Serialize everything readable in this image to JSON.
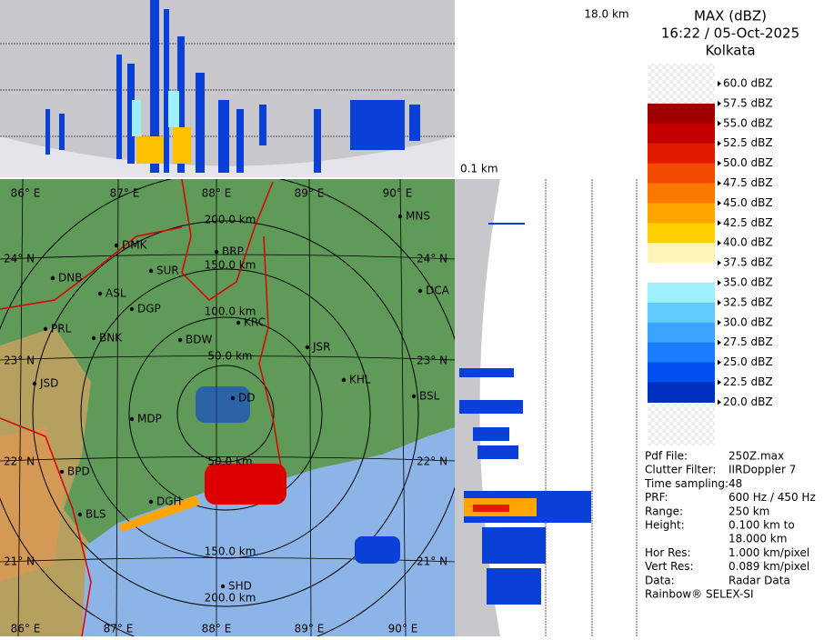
{
  "header": {
    "title": "MAX (dBZ)",
    "time": "16:22 / 05-Oct-2025",
    "site": "Kolkata"
  },
  "panels": {
    "top_height": "18.0 km",
    "side_height": "0.1 km"
  },
  "legend": [
    {
      "label": "60.0 dBZ",
      "color": null
    },
    {
      "label": "57.5 dBZ",
      "color": "#a00000"
    },
    {
      "label": "55.0 dBZ",
      "color": "#c40000"
    },
    {
      "label": "52.5 dBZ",
      "color": "#e41a00"
    },
    {
      "label": "50.0 dBZ",
      "color": "#f24a00"
    },
    {
      "label": "47.5 dBZ",
      "color": "#fa7800"
    },
    {
      "label": "45.0 dBZ",
      "color": "#ffa400"
    },
    {
      "label": "42.5 dBZ",
      "color": "#ffd000"
    },
    {
      "label": "40.0 dBZ",
      "color": "#fff4b8"
    },
    {
      "label": "37.5 dBZ",
      "color": "#ffffff"
    },
    {
      "label": "35.0 dBZ",
      "color": "#9ff0ff"
    },
    {
      "label": "32.5 dBZ",
      "color": "#60ccff"
    },
    {
      "label": "30.0 dBZ",
      "color": "#3aa4ff"
    },
    {
      "label": "27.5 dBZ",
      "color": "#1a7cff"
    },
    {
      "label": "25.0 dBZ",
      "color": "#0050f0"
    },
    {
      "label": "22.5 dBZ",
      "color": "#0030c0"
    },
    {
      "label": "20.0 dBZ",
      "color": null
    }
  ],
  "map": {
    "lon_top": [
      "86° E",
      "87° E",
      "88° E",
      "89° E",
      "90° E"
    ],
    "lon_bottom": [
      "86° E",
      "87° E",
      "88° E",
      "89° E",
      "90° E"
    ],
    "lat_left": [
      "24° N",
      "23° N",
      "22° N",
      "21° N"
    ],
    "lat_right": [
      "24° N",
      "23° N",
      "22° N",
      "21° N"
    ],
    "rings": [
      "200.0 km",
      "150.0 km",
      "100.0 km",
      "50.0 km",
      "50.0 km",
      "150.0 km",
      "200.0 km"
    ],
    "cities": [
      "MNS",
      "DMK",
      "BRP",
      "DNB",
      "SUR",
      "ASL",
      "DCA",
      "DGP",
      "KRC",
      "PRL",
      "BNK",
      "BDW",
      "JSR",
      "JSD",
      "KHL",
      "DD",
      "BSL",
      "MDP",
      "BPD",
      "DGH",
      "BLS",
      "SHD"
    ]
  },
  "info": [
    {
      "label": "Pdf File:",
      "value": "250Z.max"
    },
    {
      "label": "Clutter Filter:",
      "value": "IIRDoppler 7"
    },
    {
      "label": "Time sampling:48"
    },
    {
      "label": "PRF:",
      "value": "600 Hz / 450 Hz"
    },
    {
      "label": "Range:",
      "value": "250 km"
    },
    {
      "label": "Height:",
      "value": "0.100 km to"
    },
    {
      "value": "18.000 km"
    },
    {
      "label": "Hor Res:",
      "value": "1.000 km/pixel"
    },
    {
      "label": "Vert Res:",
      "value": "0.089 km/pixel"
    },
    {
      "label": "Data:",
      "value": "Radar Data"
    }
  ],
  "footer": "Rainbow® SELEX-SI"
}
